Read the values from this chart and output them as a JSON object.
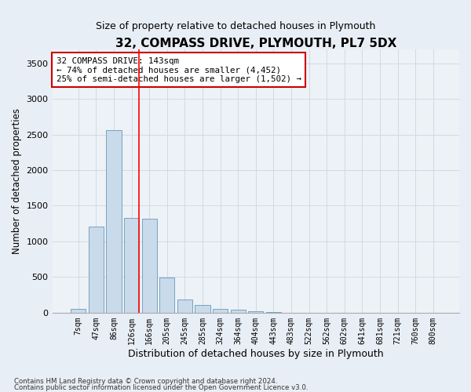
{
  "title": "32, COMPASS DRIVE, PLYMOUTH, PL7 5DX",
  "subtitle": "Size of property relative to detached houses in Plymouth",
  "xlabel": "Distribution of detached houses by size in Plymouth",
  "ylabel": "Number of detached properties",
  "bar_color": "#c9daea",
  "bar_edge_color": "#6699bb",
  "categories": [
    "7sqm",
    "47sqm",
    "86sqm",
    "126sqm",
    "166sqm",
    "205sqm",
    "245sqm",
    "285sqm",
    "324sqm",
    "364sqm",
    "404sqm",
    "443sqm",
    "483sqm",
    "522sqm",
    "562sqm",
    "602sqm",
    "641sqm",
    "681sqm",
    "721sqm",
    "760sqm",
    "800sqm"
  ],
  "values": [
    55,
    1210,
    2560,
    1330,
    1320,
    495,
    190,
    110,
    55,
    38,
    22,
    5,
    3,
    0,
    0,
    0,
    0,
    0,
    0,
    0,
    0
  ],
  "ylim": [
    0,
    3700
  ],
  "yticks": [
    0,
    500,
    1000,
    1500,
    2000,
    2500,
    3000,
    3500
  ],
  "property_line_x": 3.43,
  "annotation_text": "32 COMPASS DRIVE: 143sqm\n← 74% of detached houses are smaller (4,452)\n25% of semi-detached houses are larger (1,502) →",
  "annotation_box_color": "#ffffff",
  "annotation_box_edge_color": "#cc0000",
  "footer_line1": "Contains HM Land Registry data © Crown copyright and database right 2024.",
  "footer_line2": "Contains public sector information licensed under the Open Government Licence v3.0.",
  "bg_color": "#e8eef5",
  "plot_bg_color": "#edf2f7",
  "grid_color": "#d0dae4"
}
